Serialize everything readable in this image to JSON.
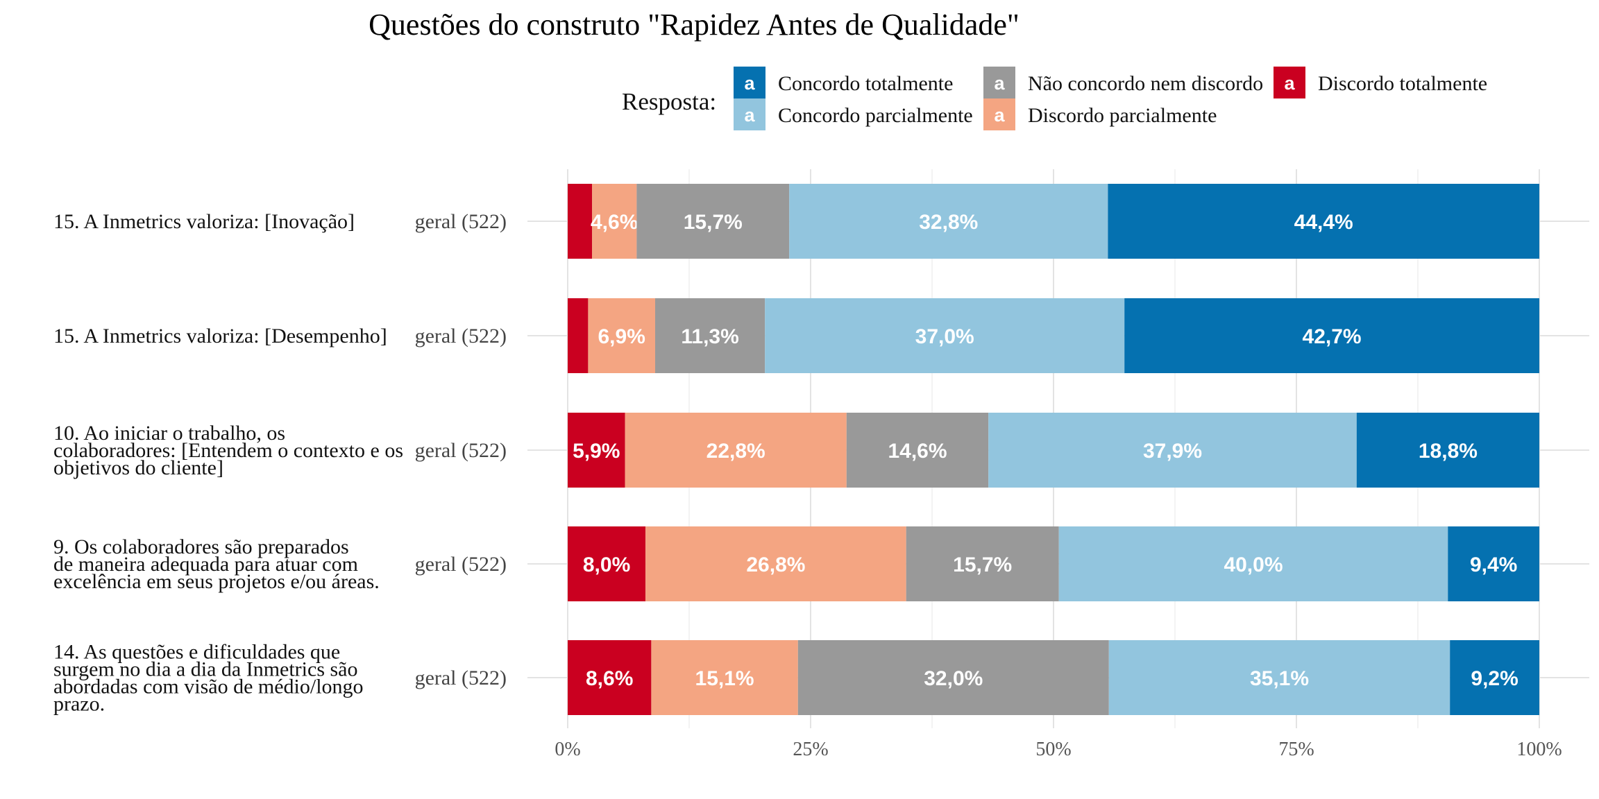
{
  "chart_data": {
    "type": "bar",
    "orientation": "horizontal",
    "stacked": true,
    "title": "Questões do construto \"Rapidez Antes de Qualidade\"",
    "legend": {
      "title": "Resposta:",
      "placement": "top",
      "key_letter": "a",
      "items": [
        {
          "name": "Concordo totalmente",
          "color": "#0571b0"
        },
        {
          "name": "Concordo parcialmente",
          "color": "#92c5de"
        },
        {
          "name": "Não concordo nem discordo",
          "color": "#999999"
        },
        {
          "name": "Discordo parcialmente",
          "color": "#f4a582"
        },
        {
          "name": "Discordo totalmente",
          "color": "#ca0020"
        }
      ]
    },
    "xlim": [
      0,
      100
    ],
    "x_ticks": [
      0,
      25,
      50,
      75,
      100
    ],
    "x_tick_labels": [
      "0%",
      "25%",
      "50%",
      "75%",
      "100%"
    ],
    "grid": true,
    "stack_order": [
      "Discordo totalmente",
      "Discordo parcialmente",
      "Não concordo nem discordo",
      "Concordo parcialmente",
      "Concordo totalmente"
    ],
    "colors": {
      "Discordo totalmente": "#ca0020",
      "Discordo parcialmente": "#f4a582",
      "Não concordo nem discordo": "#999999",
      "Concordo parcialmente": "#92c5de",
      "Concordo totalmente": "#0571b0"
    },
    "rows": [
      {
        "question_lines": [
          "15. A Inmetrics valoriza: [Inovação]"
        ],
        "group": "geral (522)",
        "values": [
          2.5,
          4.6,
          15.7,
          32.8,
          44.4
        ],
        "labels": [
          "",
          "4,6%",
          "15,7%",
          "32,8%",
          "44,4%"
        ]
      },
      {
        "question_lines": [
          "15. A Inmetrics valoriza: [Desempenho]"
        ],
        "group": "geral (522)",
        "values": [
          2.1,
          6.9,
          11.3,
          37.0,
          42.7
        ],
        "labels": [
          "",
          "6,9%",
          "11,3%",
          "37,0%",
          "42,7%"
        ]
      },
      {
        "question_lines": [
          "10. Ao iniciar o trabalho, os",
          "colaboradores: [Entendem o contexto e os",
          "objetivos do cliente]"
        ],
        "group": "geral (522)",
        "values": [
          5.9,
          22.8,
          14.6,
          37.9,
          18.8
        ],
        "labels": [
          "5,9%",
          "22,8%",
          "14,6%",
          "37,9%",
          "18,8%"
        ]
      },
      {
        "question_lines": [
          "9. Os colaboradores são preparados",
          "de maneira adequada para atuar com",
          "excelência em seus projetos e/ou áreas."
        ],
        "group": "geral (522)",
        "values": [
          8.0,
          26.8,
          15.7,
          40.0,
          9.4
        ],
        "labels": [
          "8,0%",
          "26,8%",
          "15,7%",
          "40,0%",
          "9,4%"
        ]
      },
      {
        "question_lines": [
          "14. As questões e dificuldades que",
          "surgem no dia a dia da Inmetrics são",
          "abordadas com visão de médio/longo",
          "prazo."
        ],
        "group": "geral (522)",
        "values": [
          8.6,
          15.1,
          32.0,
          35.1,
          9.2
        ],
        "labels": [
          "8,6%",
          "15,1%",
          "32,0%",
          "35,1%",
          "9,2%"
        ]
      }
    ]
  }
}
